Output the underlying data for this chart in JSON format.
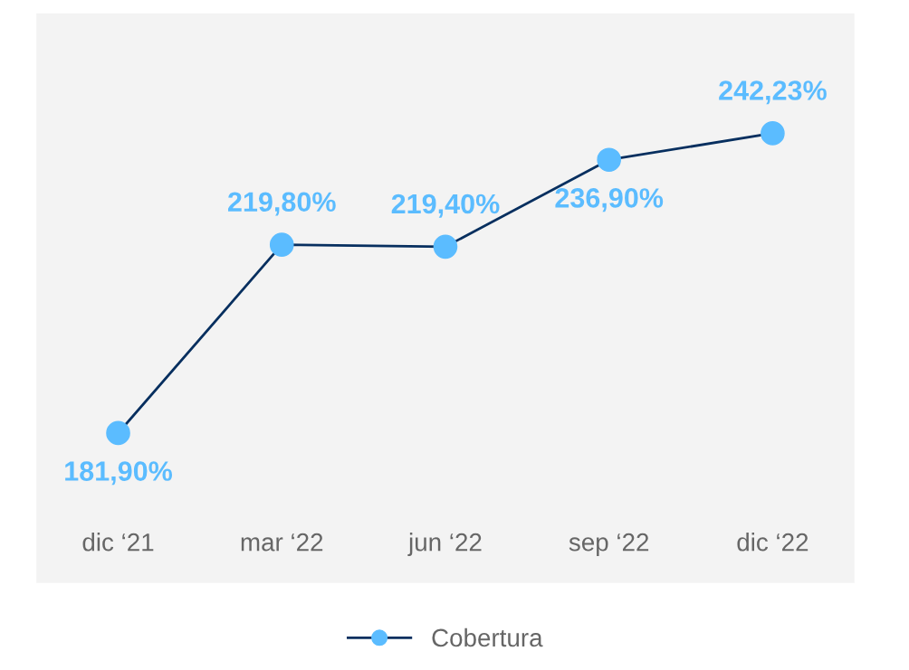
{
  "chart_data": {
    "type": "line",
    "categories": [
      "dic ‘21",
      "mar ‘22",
      "jun ‘22",
      "sep ‘22",
      "dic ‘22"
    ],
    "series": [
      {
        "name": "Cobertura",
        "color": "#072f5f",
        "colors": [
          "#5bbcff",
          "#5bbcff",
          "#5bbcff",
          "#5bbcff",
          "#5bbcff"
        ],
        "values": [
          181.9,
          219.8,
          219.4,
          236.9,
          242.23
        ],
        "value_labels": [
          "181,90%",
          "219,80%",
          "219,40%",
          "236,90%",
          "242,23%"
        ]
      }
    ],
    "marker": "circle",
    "line_style": "solid",
    "legend": "bottom",
    "grid": false,
    "tick_labels": "x"
  }
}
